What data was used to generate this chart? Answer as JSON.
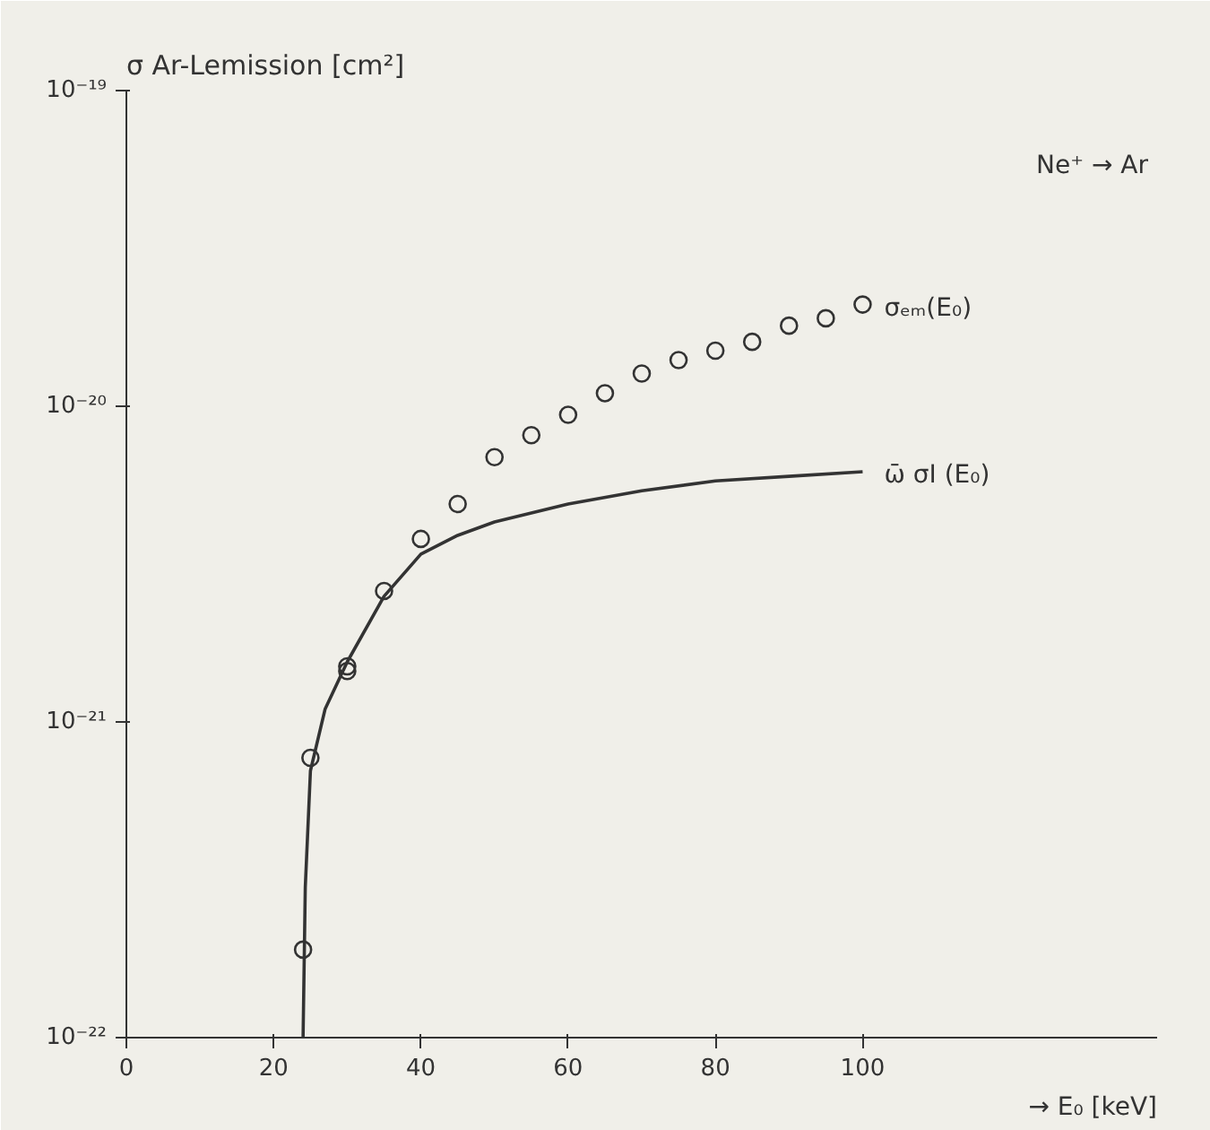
{
  "chart_data": {
    "type": "scatter",
    "ylabel": "σ Ar-Lemission [cm²]",
    "xlabel": "→ E₀ [keV]",
    "annotations": [
      "Ne⁺ → Ar"
    ],
    "log": "y",
    "grid": false,
    "xlim": [
      0,
      140
    ],
    "xticks": [
      0,
      20,
      40,
      60,
      80,
      100
    ],
    "ylim": [
      1e-22,
      1e-19
    ],
    "yticks": [
      {
        "value": 1e-22,
        "label": "10⁻²²"
      },
      {
        "value": 1e-21,
        "label": "10⁻²¹"
      },
      {
        "value": 1e-20,
        "label": "10⁻²⁰"
      },
      {
        "value": 1e-19,
        "label": "10⁻¹⁹"
      }
    ],
    "series": [
      {
        "name": "σₑₘ(E₀)",
        "marker": "circle",
        "color": "#333333",
        "x": [
          24,
          25,
          30,
          30,
          35,
          40,
          45,
          50,
          55,
          60,
          65,
          70,
          75,
          80,
          85,
          90,
          95,
          100
        ],
        "values": [
          1.9e-22,
          7.7e-22,
          1.5e-21,
          1.45e-21,
          2.6e-21,
          3.8e-21,
          4.9e-21,
          6.9e-21,
          8.1e-21,
          9.4e-21,
          1.1e-20,
          1.27e-20,
          1.4e-20,
          1.5e-20,
          1.6e-20,
          1.8e-20,
          1.9e-20,
          2.1e-20
        ]
      },
      {
        "name": "ω̄ σI (E₀)",
        "type": "line",
        "line_style": "solid",
        "color": "#333333",
        "x": [
          24,
          24.3,
          25,
          27,
          30,
          35,
          40,
          45,
          50,
          60,
          70,
          80,
          90,
          100
        ],
        "values": [
          1e-22,
          3e-22,
          7e-22,
          1.1e-21,
          1.55e-21,
          2.5e-21,
          3.4e-21,
          3.9e-21,
          4.3e-21,
          4.9e-21,
          5.4e-21,
          5.8e-21,
          6e-21,
          6.2e-21
        ]
      }
    ]
  }
}
